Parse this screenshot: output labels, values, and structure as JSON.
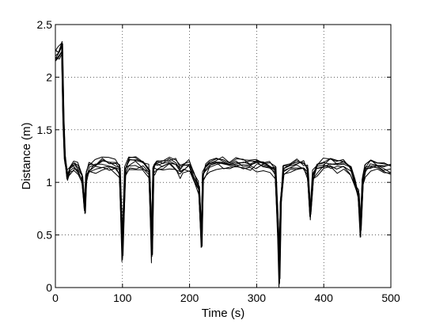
{
  "chart_data": {
    "type": "line",
    "xlabel": "Time (s)",
    "ylabel": "Distance (m)",
    "xlim": [
      0,
      500
    ],
    "ylim": [
      0,
      2.5
    ],
    "xticks": [
      0,
      100,
      200,
      300,
      400,
      500
    ],
    "yticks": [
      0,
      0.5,
      1,
      1.5,
      2,
      2.5
    ],
    "x_tick_labels": [
      "0",
      "100",
      "200",
      "300",
      "400",
      "500"
    ],
    "y_tick_labels": [
      "0",
      "0.5",
      "1",
      "1.5",
      "2",
      "2.5"
    ],
    "grid": true,
    "grid_style": "dotted",
    "series_color": "#000000",
    "series_count": 8,
    "shared_profile": {
      "x": [
        0,
        5,
        10,
        12,
        14,
        16,
        18,
        22,
        28,
        34,
        40,
        44,
        46,
        50,
        60,
        70,
        80,
        90,
        96,
        100,
        104,
        110,
        120,
        130,
        140,
        144,
        146,
        148,
        152,
        160,
        170,
        180,
        186,
        190,
        200,
        206,
        214,
        218,
        220,
        224,
        230,
        240,
        250,
        260,
        270,
        280,
        290,
        300,
        310,
        320,
        328,
        332,
        334,
        336,
        340,
        350,
        360,
        370,
        376,
        380,
        384,
        390,
        400,
        410,
        420,
        430,
        440,
        446,
        452,
        455,
        458,
        462,
        470,
        480,
        490,
        500
      ],
      "y": [
        2.2,
        2.22,
        2.28,
        1.6,
        1.25,
        1.15,
        1.05,
        1.12,
        1.13,
        1.12,
        1.05,
        0.75,
        1.05,
        1.13,
        1.15,
        1.17,
        1.16,
        1.15,
        1.1,
        0.35,
        1.1,
        1.17,
        1.18,
        1.16,
        1.1,
        0.35,
        1.1,
        1.14,
        1.16,
        1.17,
        1.18,
        1.16,
        1.1,
        1.13,
        1.15,
        1.05,
        0.95,
        0.45,
        1.05,
        1.12,
        1.16,
        1.18,
        1.17,
        1.16,
        1.18,
        1.17,
        1.16,
        1.17,
        1.16,
        1.15,
        1.1,
        0.55,
        0.12,
        0.8,
        1.1,
        1.14,
        1.16,
        1.15,
        1.1,
        0.7,
        1.05,
        1.13,
        1.16,
        1.17,
        1.15,
        1.16,
        1.12,
        1.0,
        0.88,
        0.55,
        1.0,
        1.12,
        1.16,
        1.15,
        1.14,
        1.12
      ]
    },
    "series_offsets": [
      0.0,
      0.05,
      -0.04,
      0.08,
      -0.07,
      0.03,
      -0.02,
      0.06
    ]
  }
}
